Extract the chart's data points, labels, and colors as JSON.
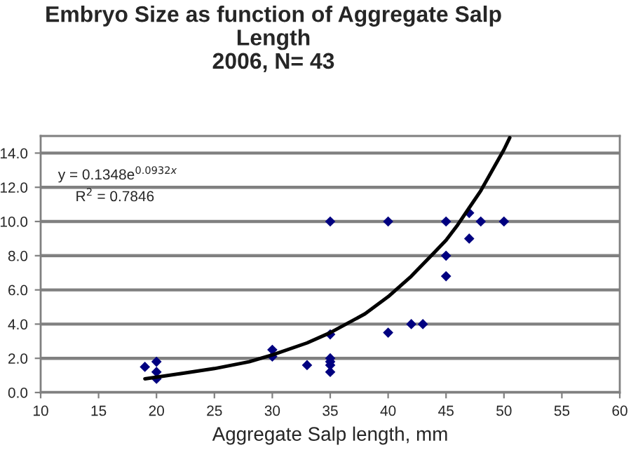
{
  "chart_data": {
    "type": "scatter",
    "title": "Embryo Size as function of Aggregate Salp\nLength\n2006, N= 43",
    "xlabel": "Aggregate Salp length, mm",
    "series": [
      {
        "color": "#000080",
        "marker": "diamond",
        "x": [
          19,
          20,
          20,
          20,
          30,
          30,
          33,
          35,
          35,
          35,
          35,
          35,
          35,
          40,
          40,
          42,
          43,
          45,
          45,
          45,
          47,
          47,
          48,
          50
        ],
        "values": [
          1.5,
          1.8,
          1.2,
          0.8,
          2.5,
          2.1,
          1.6,
          10.0,
          3.4,
          2.0,
          1.8,
          1.6,
          1.2,
          10.0,
          3.5,
          4.0,
          4.0,
          10.0,
          8.0,
          6.8,
          10.5,
          9.0,
          10.0,
          10.0
        ]
      },
      {
        "type": "line",
        "color": "#000000",
        "marker": "none",
        "x": [
          19,
          22,
          25,
          28,
          30,
          33,
          35,
          38,
          40,
          42,
          44,
          45,
          46,
          47,
          48,
          49,
          50,
          50.5
        ],
        "values": [
          0.8,
          1.1,
          1.4,
          1.8,
          2.2,
          2.9,
          3.5,
          4.6,
          5.6,
          6.8,
          8.2,
          8.9,
          9.8,
          10.8,
          11.8,
          13.0,
          14.2,
          14.9
        ]
      }
    ],
    "annotations": [
      "y = 0.1348e$^{0.0932x}$",
      "R$^{2}$ = 0.7846"
    ],
    "xlim": [
      10,
      60
    ],
    "xticks": [
      10,
      15,
      20,
      25,
      30,
      35,
      40,
      45,
      50,
      55,
      60
    ],
    "ylim": [
      0,
      15
    ],
    "yticks": [
      {
        "value": 0,
        "label": "0.0"
      },
      {
        "value": 2,
        "label": "2.0"
      },
      {
        "value": 4,
        "label": "4.0"
      },
      {
        "value": 6,
        "label": "6.0"
      },
      {
        "value": 8,
        "label": "8.0"
      },
      {
        "value": 10,
        "label": "10.0"
      },
      {
        "value": 12,
        "label": "12.0"
      },
      {
        "value": 14,
        "label": "14.0"
      }
    ],
    "grid": "y",
    "legend": false
  }
}
